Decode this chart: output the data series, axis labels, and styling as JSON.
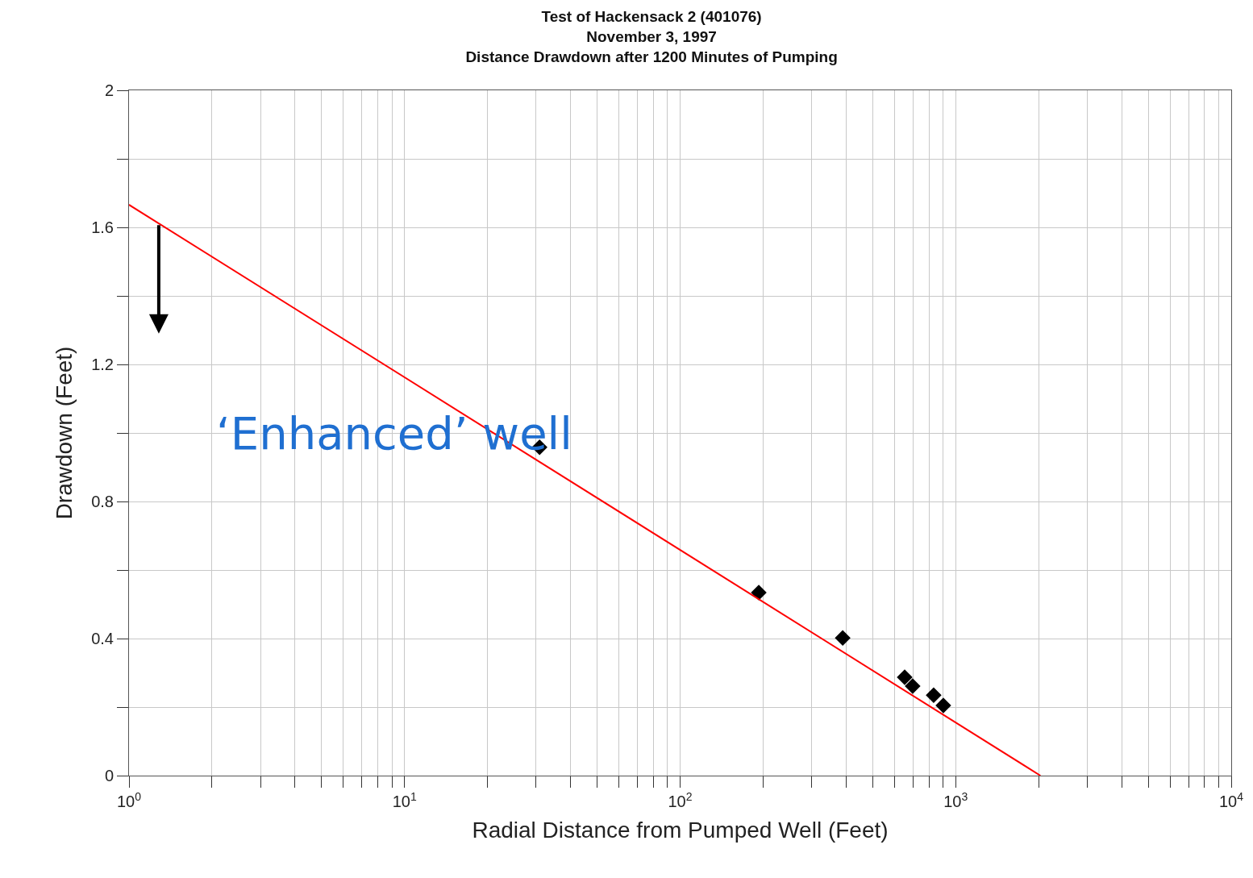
{
  "chart_data": {
    "type": "scatter",
    "title": "Test of Hackensack 2 (401076)\nNovember 3, 1997\nDistance Drawdown after 1200 Minutes of Pumping",
    "xlabel": "Radial Distance from Pumped Well (Feet)",
    "ylabel": "Drawdown (Feet)",
    "log": "x",
    "grid": true,
    "xlim": [
      1,
      10000
    ],
    "ylim": [
      0,
      2
    ],
    "xticks": [
      {
        "value": 1,
        "label": "10$^{0}$"
      },
      {
        "value": 2,
        "label": null
      },
      {
        "value": 3,
        "label": null
      },
      {
        "value": 4,
        "label": null
      },
      {
        "value": 5,
        "label": null
      },
      {
        "value": 6,
        "label": null
      },
      {
        "value": 7,
        "label": null
      },
      {
        "value": 8,
        "label": null
      },
      {
        "value": 9,
        "label": null
      },
      {
        "value": 10,
        "label": "10$^{1}$"
      },
      {
        "value": 20,
        "label": null
      },
      {
        "value": 30,
        "label": null
      },
      {
        "value": 40,
        "label": null
      },
      {
        "value": 50,
        "label": null
      },
      {
        "value": 60,
        "label": null
      },
      {
        "value": 70,
        "label": null
      },
      {
        "value": 80,
        "label": null
      },
      {
        "value": 90,
        "label": null
      },
      {
        "value": 100,
        "label": "10$^{2}$"
      },
      {
        "value": 200,
        "label": null
      },
      {
        "value": 300,
        "label": null
      },
      {
        "value": 400,
        "label": null
      },
      {
        "value": 500,
        "label": null
      },
      {
        "value": 600,
        "label": null
      },
      {
        "value": 700,
        "label": null
      },
      {
        "value": 800,
        "label": null
      },
      {
        "value": 900,
        "label": null
      },
      {
        "value": 1000,
        "label": "10$^{3}$"
      },
      {
        "value": 2000,
        "label": null
      },
      {
        "value": 3000,
        "label": null
      },
      {
        "value": 4000,
        "label": null
      },
      {
        "value": 5000,
        "label": null
      },
      {
        "value": 6000,
        "label": null
      },
      {
        "value": 7000,
        "label": null
      },
      {
        "value": 8000,
        "label": null
      },
      {
        "value": 9000,
        "label": null
      },
      {
        "value": 10000,
        "label": "10$^{4}$"
      }
    ],
    "yticks": [
      0,
      {
        "value": 0.2,
        "label": null
      },
      0.4,
      {
        "value": 0.6,
        "label": null
      },
      0.8,
      {
        "value": 1.0,
        "label": null
      },
      1.2,
      {
        "value": 1.4,
        "label": null
      },
      1.6,
      {
        "value": 1.8,
        "label": null
      },
      2
    ],
    "series": [
      {
        "marker": "diamond",
        "color": "#000000",
        "x": [
          30.9,
          193,
          389,
          653,
          698,
          832,
          902
        ],
        "values": [
          0.958,
          0.534,
          0.402,
          0.287,
          0.261,
          0.235,
          0.205
        ]
      },
      {
        "type": "line",
        "marker": "none",
        "color": "#ff0000",
        "x": [
          1,
          2030
        ],
        "values": [
          1.666,
          0
        ]
      }
    ],
    "annotations": [
      "‘Enhanced’ well"
    ]
  }
}
